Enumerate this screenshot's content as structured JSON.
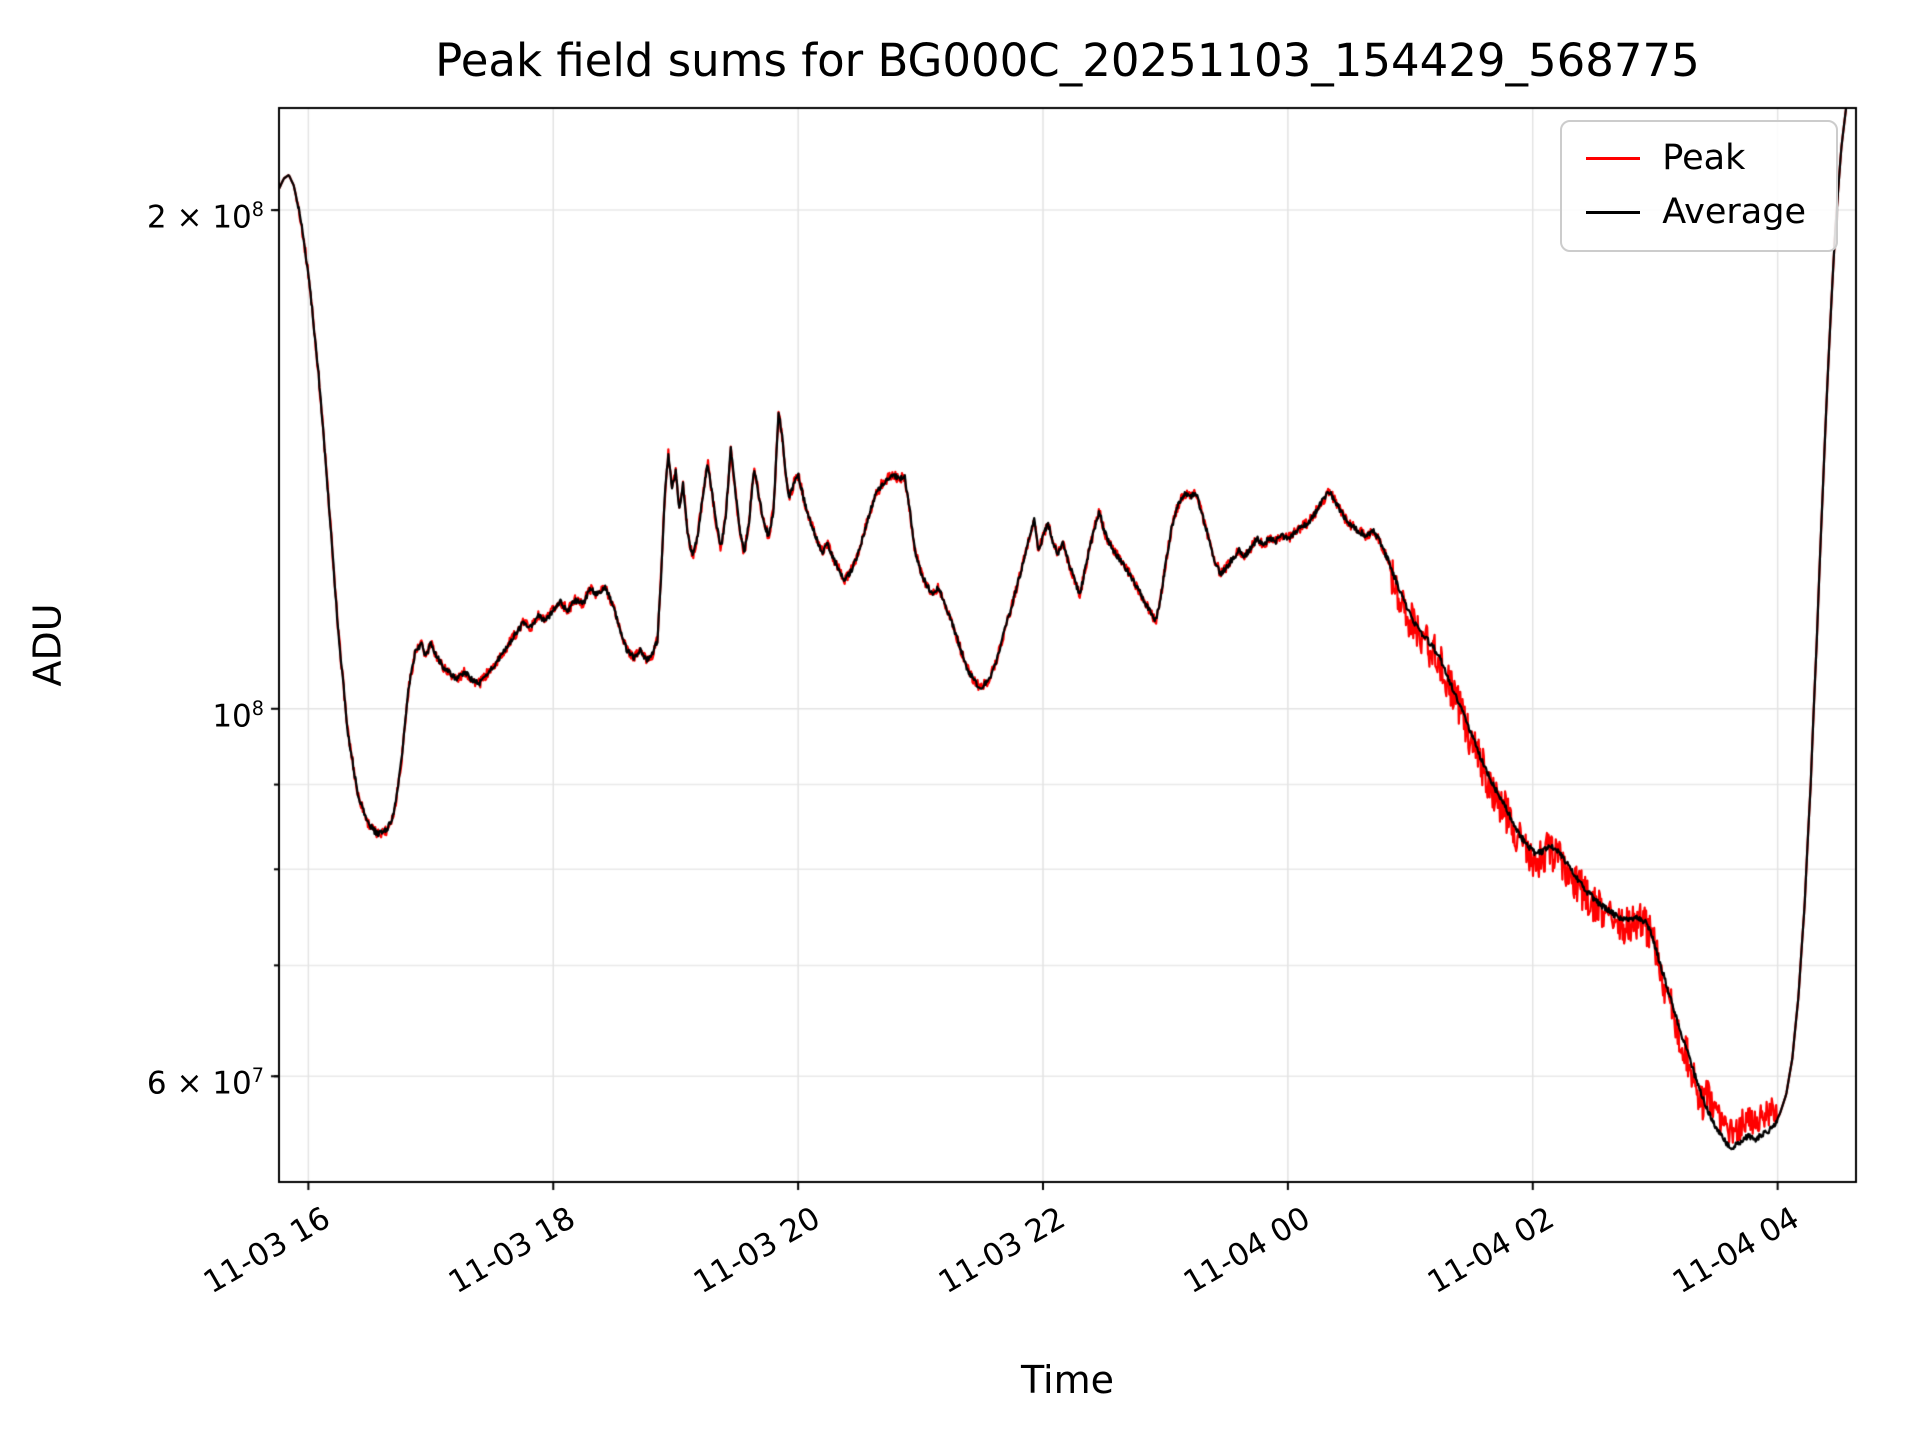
{
  "chart_data": {
    "type": "line",
    "title": "Peak field sums for BG000C_20251103_154429_568775",
    "xlabel": "Time",
    "ylabel": "ADU",
    "yscale": "log",
    "grid": true,
    "ylim": [
      51800000,
      230500000
    ],
    "xlim_hours": [
      15.76,
      28.64
    ],
    "x_unit": "hours since 2025-11-03 00:00",
    "value_unit": "ADU x 1e6",
    "xticks": [
      {
        "hours": 16,
        "label": "11-03 16"
      },
      {
        "hours": 18,
        "label": "11-03 18"
      },
      {
        "hours": 20,
        "label": "11-03 20"
      },
      {
        "hours": 22,
        "label": "11-03 22"
      },
      {
        "hours": 24,
        "label": "11-04 00"
      },
      {
        "hours": 26,
        "label": "11-04 02"
      },
      {
        "hours": 28,
        "label": "11-04 04"
      }
    ],
    "yticks": [
      {
        "value": 200000000,
        "mantissa": "2 × 10",
        "exp": "8"
      },
      {
        "value": 100000000,
        "mantissa": "10",
        "exp": "8"
      },
      {
        "value": 60000000,
        "mantissa": "6 × 10",
        "exp": "7"
      }
    ],
    "yticks_minor": [
      60000000,
      70000000,
      80000000,
      90000000,
      200000000
    ],
    "legend": {
      "position": "upper right",
      "entries": [
        {
          "label": "Peak",
          "color": "#ff0000"
        },
        {
          "label": "Average",
          "color": "#000000"
        }
      ]
    },
    "series_note": "Peak and Average curves overlap almost everywhere; base_points is the shared curve, noise_regions give the visible fuzz of each trace.",
    "base_points": [
      [
        15.76,
        206
      ],
      [
        15.8,
        209
      ],
      [
        15.84,
        210
      ],
      [
        15.88,
        207
      ],
      [
        15.93,
        199
      ],
      [
        16.0,
        183
      ],
      [
        16.08,
        160
      ],
      [
        16.16,
        135
      ],
      [
        16.24,
        112
      ],
      [
        16.32,
        97
      ],
      [
        16.4,
        89
      ],
      [
        16.48,
        85.5
      ],
      [
        16.56,
        84
      ],
      [
        16.64,
        84.5
      ],
      [
        16.7,
        86.5
      ],
      [
        16.76,
        93
      ],
      [
        16.82,
        103
      ],
      [
        16.87,
        108
      ],
      [
        16.92,
        109.5
      ],
      [
        16.96,
        107.5
      ],
      [
        17.0,
        109.5
      ],
      [
        17.05,
        107.5
      ],
      [
        17.1,
        106
      ],
      [
        17.16,
        105
      ],
      [
        17.22,
        104.2
      ],
      [
        17.28,
        105.3
      ],
      [
        17.34,
        104
      ],
      [
        17.4,
        103.6
      ],
      [
        17.46,
        105
      ],
      [
        17.52,
        106.2
      ],
      [
        17.58,
        107.8
      ],
      [
        17.64,
        109.5
      ],
      [
        17.7,
        111.2
      ],
      [
        17.76,
        112.8
      ],
      [
        17.82,
        112
      ],
      [
        17.88,
        113.8
      ],
      [
        17.94,
        113
      ],
      [
        18.0,
        114.8
      ],
      [
        18.06,
        116
      ],
      [
        18.12,
        114.6
      ],
      [
        18.18,
        116.4
      ],
      [
        18.24,
        115.6
      ],
      [
        18.3,
        118.2
      ],
      [
        18.36,
        117.2
      ],
      [
        18.42,
        118.4
      ],
      [
        18.48,
        116
      ],
      [
        18.54,
        112
      ],
      [
        18.6,
        108.6
      ],
      [
        18.66,
        107.4
      ],
      [
        18.71,
        108.6
      ],
      [
        18.76,
        107
      ],
      [
        18.81,
        107.8
      ],
      [
        18.85,
        110
      ],
      [
        18.88,
        120
      ],
      [
        18.91,
        134
      ],
      [
        18.94,
        142.5
      ],
      [
        18.97,
        136
      ],
      [
        19.0,
        139
      ],
      [
        19.03,
        132
      ],
      [
        19.06,
        136.5
      ],
      [
        19.1,
        127
      ],
      [
        19.14,
        123.5
      ],
      [
        19.18,
        127.5
      ],
      [
        19.22,
        134
      ],
      [
        19.26,
        141
      ],
      [
        19.29,
        136
      ],
      [
        19.33,
        129.5
      ],
      [
        19.37,
        125
      ],
      [
        19.41,
        131
      ],
      [
        19.45,
        143.5
      ],
      [
        19.48,
        137
      ],
      [
        19.52,
        128.5
      ],
      [
        19.56,
        124
      ],
      [
        19.6,
        130
      ],
      [
        19.64,
        139.5
      ],
      [
        19.68,
        134.5
      ],
      [
        19.72,
        129.5
      ],
      [
        19.76,
        127
      ],
      [
        19.8,
        132
      ],
      [
        19.84,
        151
      ],
      [
        19.87,
        146
      ],
      [
        19.9,
        138
      ],
      [
        19.93,
        134
      ],
      [
        19.96,
        136.5
      ],
      [
        20.0,
        138.5
      ],
      [
        20.04,
        134.5
      ],
      [
        20.08,
        131
      ],
      [
        20.12,
        128.5
      ],
      [
        20.16,
        126
      ],
      [
        20.2,
        124.5
      ],
      [
        20.24,
        125.8
      ],
      [
        20.28,
        123.5
      ],
      [
        20.33,
        121.5
      ],
      [
        20.38,
        119.5
      ],
      [
        20.43,
        121
      ],
      [
        20.48,
        123.5
      ],
      [
        20.53,
        127
      ],
      [
        20.58,
        131
      ],
      [
        20.63,
        134.5
      ],
      [
        20.68,
        136.5
      ],
      [
        20.73,
        137.8
      ],
      [
        20.78,
        138.3
      ],
      [
        20.83,
        137.6
      ],
      [
        20.87,
        138.2
      ],
      [
        20.91,
        132
      ],
      [
        20.95,
        125
      ],
      [
        21.0,
        121
      ],
      [
        21.05,
        118.8
      ],
      [
        21.1,
        117.3
      ],
      [
        21.15,
        118.4
      ],
      [
        21.2,
        115.8
      ],
      [
        21.26,
        112.5
      ],
      [
        21.32,
        109
      ],
      [
        21.38,
        105.8
      ],
      [
        21.44,
        103.8
      ],
      [
        21.5,
        103
      ],
      [
        21.56,
        104.2
      ],
      [
        21.62,
        107
      ],
      [
        21.68,
        111
      ],
      [
        21.74,
        115
      ],
      [
        21.8,
        119.5
      ],
      [
        21.85,
        123.5
      ],
      [
        21.89,
        127
      ],
      [
        21.93,
        130
      ],
      [
        21.96,
        124.5
      ],
      [
        22.0,
        127
      ],
      [
        22.04,
        129.5
      ],
      [
        22.08,
        126
      ],
      [
        22.12,
        124
      ],
      [
        22.16,
        126
      ],
      [
        22.21,
        122.5
      ],
      [
        22.26,
        119.5
      ],
      [
        22.3,
        117
      ],
      [
        22.34,
        121
      ],
      [
        22.38,
        125
      ],
      [
        22.42,
        128.5
      ],
      [
        22.46,
        131.5
      ],
      [
        22.5,
        128
      ],
      [
        22.54,
        126
      ],
      [
        22.58,
        124.5
      ],
      [
        22.63,
        123
      ],
      [
        22.68,
        121.5
      ],
      [
        22.73,
        119.8
      ],
      [
        22.78,
        118
      ],
      [
        22.83,
        116
      ],
      [
        22.88,
        114.2
      ],
      [
        22.92,
        113
      ],
      [
        22.96,
        116.5
      ],
      [
        23.0,
        122
      ],
      [
        23.05,
        128.5
      ],
      [
        23.1,
        132.5
      ],
      [
        23.15,
        134.8
      ],
      [
        23.2,
        134.2
      ],
      [
        23.25,
        135
      ],
      [
        23.3,
        131
      ],
      [
        23.35,
        127
      ],
      [
        23.4,
        123
      ],
      [
        23.45,
        120.6
      ],
      [
        23.5,
        121.8
      ],
      [
        23.55,
        123.2
      ],
      [
        23.6,
        124.6
      ],
      [
        23.65,
        123.6
      ],
      [
        23.7,
        125.2
      ],
      [
        23.75,
        126.6
      ],
      [
        23.8,
        125.6
      ],
      [
        23.85,
        126.8
      ],
      [
        23.9,
        126.2
      ],
      [
        23.95,
        127.2
      ],
      [
        24.0,
        126.6
      ],
      [
        24.05,
        127.6
      ],
      [
        24.1,
        128.6
      ],
      [
        24.16,
        129.4
      ],
      [
        24.22,
        131.2
      ],
      [
        24.28,
        133.4
      ],
      [
        24.34,
        135.2
      ],
      [
        24.4,
        133
      ],
      [
        24.46,
        130.4
      ],
      [
        24.52,
        129
      ],
      [
        24.58,
        128
      ],
      [
        24.64,
        127.2
      ],
      [
        24.7,
        128
      ],
      [
        24.76,
        125.8
      ],
      [
        24.82,
        122.8
      ],
      [
        24.88,
        119.6
      ],
      [
        24.94,
        116.6
      ],
      [
        25.0,
        113.8
      ],
      [
        25.06,
        111.8
      ],
      [
        25.12,
        110.4
      ],
      [
        25.18,
        109.2
      ],
      [
        25.24,
        107.4
      ],
      [
        25.3,
        104.8
      ],
      [
        25.36,
        102.2
      ],
      [
        25.42,
        99.8
      ],
      [
        25.48,
        97.2
      ],
      [
        25.54,
        94.8
      ],
      [
        25.6,
        92.4
      ],
      [
        25.66,
        90.4
      ],
      [
        25.72,
        88.8
      ],
      [
        25.78,
        87.2
      ],
      [
        25.84,
        85.4
      ],
      [
        25.9,
        83.8
      ],
      [
        25.96,
        82.6
      ],
      [
        26.02,
        81.8
      ],
      [
        26.08,
        82
      ],
      [
        26.14,
        82.8
      ],
      [
        26.2,
        82.2
      ],
      [
        26.26,
        81
      ],
      [
        26.32,
        79.8
      ],
      [
        26.38,
        78.6
      ],
      [
        26.44,
        77.6
      ],
      [
        26.5,
        76.8
      ],
      [
        26.56,
        76.1
      ],
      [
        26.62,
        75.5
      ],
      [
        26.68,
        75
      ],
      [
        26.74,
        74.7
      ],
      [
        26.8,
        74.6
      ],
      [
        26.86,
        74.8
      ],
      [
        26.92,
        74.4
      ],
      [
        26.97,
        73.2
      ],
      [
        27.02,
        71
      ],
      [
        27.07,
        69
      ],
      [
        27.12,
        67
      ],
      [
        27.17,
        65.2
      ],
      [
        27.22,
        63.4
      ],
      [
        27.27,
        61.8
      ],
      [
        27.32,
        60.2
      ],
      [
        27.37,
        58.8
      ],
      [
        27.42,
        57.4
      ],
      [
        27.47,
        56.4
      ],
      [
        27.52,
        55.5
      ],
      [
        27.57,
        54.8
      ],
      [
        27.62,
        54.3
      ],
      [
        27.67,
        54.6
      ],
      [
        27.72,
        55
      ],
      [
        27.77,
        55.2
      ],
      [
        27.82,
        55
      ],
      [
        27.87,
        55.3
      ],
      [
        27.92,
        55.6
      ],
      [
        27.97,
        56
      ],
      [
        28.02,
        57
      ],
      [
        28.07,
        58.5
      ],
      [
        28.12,
        61.5
      ],
      [
        28.17,
        67
      ],
      [
        28.22,
        76
      ],
      [
        28.27,
        90
      ],
      [
        28.32,
        110
      ],
      [
        28.37,
        136
      ],
      [
        28.42,
        165
      ],
      [
        28.47,
        194
      ],
      [
        28.52,
        218
      ],
      [
        28.57,
        234
      ],
      [
        28.62,
        244
      ],
      [
        28.64,
        248
      ]
    ],
    "series": [
      {
        "name": "Peak",
        "color": "#ff0000",
        "noise_regions": [
          {
            "from": 15.9,
            "to": 24.85,
            "amp": 0.007,
            "bias": 0
          },
          {
            "from": 24.85,
            "to": 27.4,
            "amp": 0.028,
            "bias": -0.006
          },
          {
            "from": 27.4,
            "to": 27.99,
            "amp": 0.022,
            "bias": 0.022
          }
        ]
      },
      {
        "name": "Average",
        "color": "#000000",
        "noise_regions": [
          {
            "from": 15.9,
            "to": 28.0,
            "amp": 0.004,
            "bias": 0
          }
        ]
      }
    ]
  }
}
